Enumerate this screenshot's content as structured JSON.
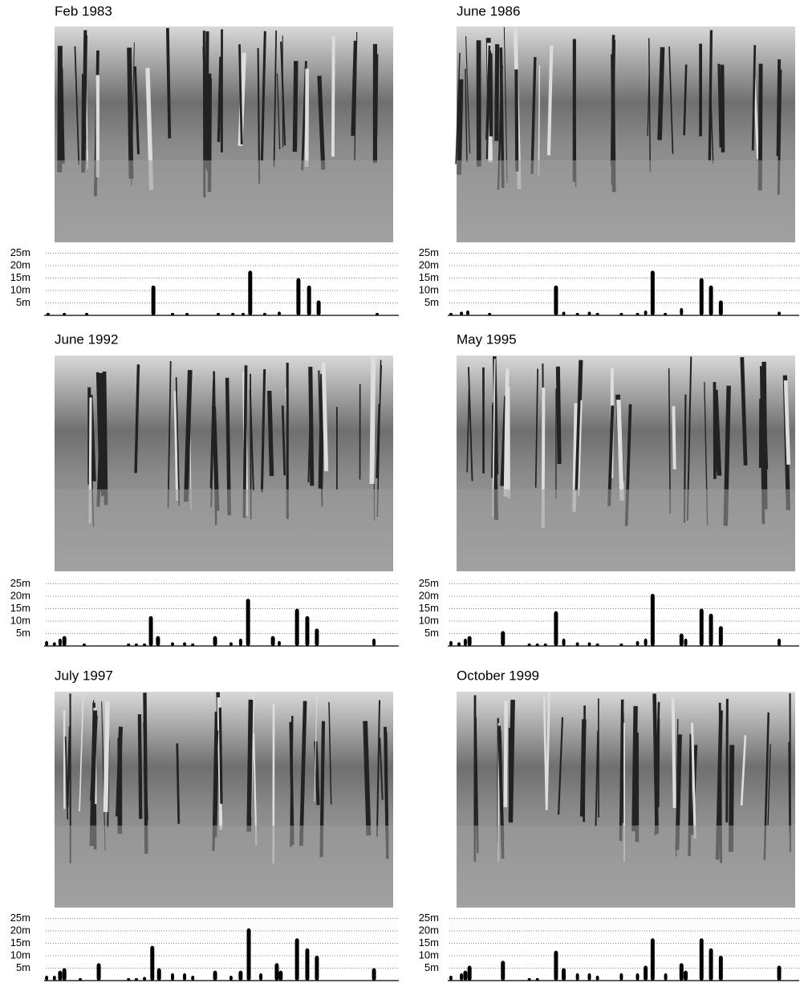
{
  "panels": [
    {
      "title": "Feb 1983",
      "profile": {
        "ylim": [
          0,
          25
        ],
        "yticks": [
          {
            "value": 25,
            "label": "25m"
          },
          {
            "value": 20,
            "label": "20m"
          },
          {
            "value": 15,
            "label": "15m"
          },
          {
            "value": 10,
            "label": "10m"
          },
          {
            "value": 5,
            "label": "5m"
          }
        ],
        "x": [
          1.1,
          5.7,
          12,
          30.8,
          36.2,
          40.3,
          49.1,
          53.2,
          56.1,
          58.1,
          62.2,
          66.3,
          71.7,
          74.7,
          77.4,
          93.9
        ],
        "heights": [
          1,
          1,
          1,
          12,
          1,
          1,
          1,
          1,
          1,
          18,
          1,
          1.5,
          15,
          12,
          6,
          1
        ]
      }
    },
    {
      "title": "June 1986",
      "profile": {
        "ylim": [
          0,
          25
        ],
        "yticks": [
          {
            "value": 25,
            "label": "25m"
          },
          {
            "value": 20,
            "label": "20m"
          },
          {
            "value": 15,
            "label": "15m"
          },
          {
            "value": 10,
            "label": "10m"
          },
          {
            "value": 5,
            "label": "5m"
          }
        ],
        "x": [
          0.9,
          3.9,
          5.7,
          11.9,
          30.8,
          33,
          36.9,
          40.3,
          42.6,
          49.4,
          54,
          56.3,
          58.3,
          61.9,
          66.5,
          72.2,
          74.9,
          77.7,
          94.3
        ],
        "heights": [
          1,
          1.5,
          2,
          1,
          12,
          1.5,
          1,
          1.5,
          1,
          1,
          1,
          2,
          18,
          1,
          3,
          15,
          12,
          6,
          1.5
        ]
      }
    },
    {
      "title": "June 1992",
      "profile": {
        "ylim": [
          0,
          25
        ],
        "yticks": [
          {
            "value": 25,
            "label": "25m"
          },
          {
            "value": 20,
            "label": "20m"
          },
          {
            "value": 15,
            "label": "15m"
          },
          {
            "value": 10,
            "label": "10m"
          },
          {
            "value": 5,
            "label": "5m"
          }
        ],
        "x": [
          0.7,
          2.9,
          4.5,
          5.7,
          11.3,
          23.8,
          26,
          28.3,
          30.1,
          32.1,
          36.2,
          39.6,
          41.9,
          48.2,
          52.7,
          55.4,
          57.5,
          64.5,
          66.3,
          71.3,
          74.2,
          76.9,
          93
        ],
        "heights": [
          2,
          1.5,
          3,
          4,
          1,
          1,
          1,
          1,
          12,
          4,
          1.5,
          1.5,
          1,
          4,
          1.5,
          3,
          19,
          4,
          2,
          15,
          12,
          7,
          3
        ]
      }
    },
    {
      "title": "May 1995",
      "profile": {
        "ylim": [
          0,
          25
        ],
        "yticks": [
          {
            "value": 25,
            "label": "25m"
          },
          {
            "value": 20,
            "label": "20m"
          },
          {
            "value": 15,
            "label": "15m"
          },
          {
            "value": 10,
            "label": "10m"
          },
          {
            "value": 5,
            "label": "5m"
          }
        ],
        "x": [
          0.9,
          3.2,
          5,
          6.2,
          15.7,
          23.2,
          25.5,
          27.8,
          30.8,
          33,
          36.9,
          40.3,
          42.6,
          49.4,
          54,
          56.3,
          58.3,
          66.5,
          67.7,
          72.2,
          74.9,
          77.7,
          94.3
        ],
        "heights": [
          2,
          1.5,
          3,
          4,
          6,
          1,
          1,
          1,
          14,
          3,
          1.5,
          1.5,
          1,
          1,
          2,
          3,
          21,
          5,
          3,
          15,
          13,
          8,
          3
        ]
      }
    },
    {
      "title": "July 1997",
      "profile": {
        "ylim": [
          0,
          25
        ],
        "yticks": [
          {
            "value": 25,
            "label": "25m"
          },
          {
            "value": 20,
            "label": "20m"
          },
          {
            "value": 15,
            "label": "15m"
          },
          {
            "value": 10,
            "label": "10m"
          },
          {
            "value": 5,
            "label": "5m"
          }
        ],
        "x": [
          0.7,
          2.9,
          4.5,
          5.7,
          10.2,
          15.4,
          23.8,
          26,
          28.3,
          30.5,
          32.4,
          36.2,
          39.6,
          41.9,
          48.2,
          52.7,
          55.4,
          57.7,
          61.1,
          65.6,
          66.7,
          71.3,
          74.2,
          76.9,
          93
        ],
        "heights": [
          2,
          2,
          4,
          5,
          1,
          7,
          1,
          1,
          1.5,
          14,
          5,
          3,
          3,
          2,
          4,
          2,
          4,
          21,
          3,
          7,
          4,
          17,
          13,
          10,
          5
        ]
      }
    },
    {
      "title": "October 1999",
      "profile": {
        "ylim": [
          0,
          25
        ],
        "yticks": [
          {
            "value": 25,
            "label": "25m"
          },
          {
            "value": 20,
            "label": "20m"
          },
          {
            "value": 15,
            "label": "15m"
          },
          {
            "value": 10,
            "label": "10m"
          },
          {
            "value": 5,
            "label": "5m"
          }
        ],
        "x": [
          0.9,
          3.9,
          5,
          6.2,
          15.7,
          23.2,
          25.5,
          30.8,
          33,
          36.9,
          40.3,
          42.6,
          49.4,
          54,
          56.3,
          58.3,
          62,
          66.5,
          67.7,
          72.2,
          74.9,
          77.7,
          94.3
        ],
        "heights": [
          2,
          3,
          4,
          6,
          8,
          1,
          1,
          12,
          5,
          3,
          3,
          2,
          3,
          3,
          6,
          17,
          3,
          7,
          4,
          17,
          13,
          10,
          6
        ]
      }
    }
  ]
}
